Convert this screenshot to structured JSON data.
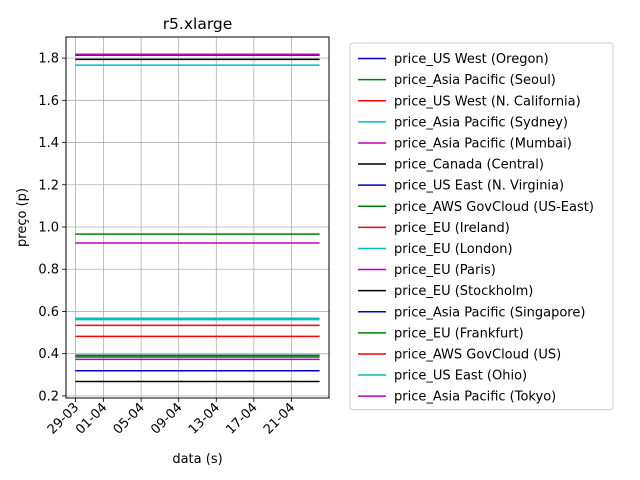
{
  "chart_data": {
    "type": "line",
    "title": "r5.xlarge",
    "xlabel": "data (s)",
    "ylabel": "preço (p)",
    "x_range": [
      "2019-03-28",
      "2019-04-25"
    ],
    "x_data_range": [
      "2019-03-29",
      "2019-04-24"
    ],
    "x_ticks": [
      {
        "date": "2019-03-29",
        "label": "29-03"
      },
      {
        "date": "2019-04-01",
        "label": "01-04"
      },
      {
        "date": "2019-04-05",
        "label": "05-04"
      },
      {
        "date": "2019-04-09",
        "label": "09-04"
      },
      {
        "date": "2019-04-13",
        "label": "13-04"
      },
      {
        "date": "2019-04-17",
        "label": "17-04"
      },
      {
        "date": "2019-04-21",
        "label": "21-04"
      }
    ],
    "ylim": [
      0.19,
      1.9
    ],
    "y_ticks": [
      0.2,
      0.4,
      0.6,
      0.8,
      1.0,
      1.2,
      1.4,
      1.6,
      1.8
    ],
    "grid": true,
    "legend_position": "outside-right",
    "series": [
      {
        "name": "price_US West (Oregon)",
        "color": "#0000bf",
        "value": 0.319
      },
      {
        "name": "price_Asia Pacific (Seoul)",
        "color": "#008000",
        "value": 0.384
      },
      {
        "name": "price_US West (N. California)",
        "color": "#ff0000",
        "value": 0.534
      },
      {
        "name": "price_Asia Pacific (Sydney)",
        "color": "#00bfbf",
        "value": 1.767
      },
      {
        "name": "price_Asia Pacific (Mumbai)",
        "color": "#bf00bf",
        "value": 0.924
      },
      {
        "name": "price_Canada (Central)",
        "color": "#000000",
        "value": 1.794
      },
      {
        "name": "price_US East (N. Virginia)",
        "color": "#0000bf",
        "value": 1.814
      },
      {
        "name": "price_AWS GovCloud (US-East)",
        "color": "#008000",
        "value": 0.966
      },
      {
        "name": "price_EU (Ireland)",
        "color": "#ff0000",
        "value": 0.482
      },
      {
        "name": "price_EU (London)",
        "color": "#00bfbf",
        "value": 0.561
      },
      {
        "name": "price_EU (Paris)",
        "color": "#bf00bf",
        "value": 0.373
      },
      {
        "name": "price_EU (Stockholm)",
        "color": "#000000",
        "value": 0.268
      },
      {
        "name": "price_Asia Pacific (Singapore)",
        "color": "#0000bf",
        "value": 0.392
      },
      {
        "name": "price_EU (Frankfurt)",
        "color": "#008000",
        "value": 0.392
      },
      {
        "name": "price_AWS GovCloud (US)",
        "color": "#ff0000",
        "value": 1.818
      },
      {
        "name": "price_US East (Ohio)",
        "color": "#00bfbf",
        "value": 0.568
      },
      {
        "name": "price_Asia Pacific (Tokyo)",
        "color": "#bf00bf",
        "value": 1.818
      }
    ]
  }
}
